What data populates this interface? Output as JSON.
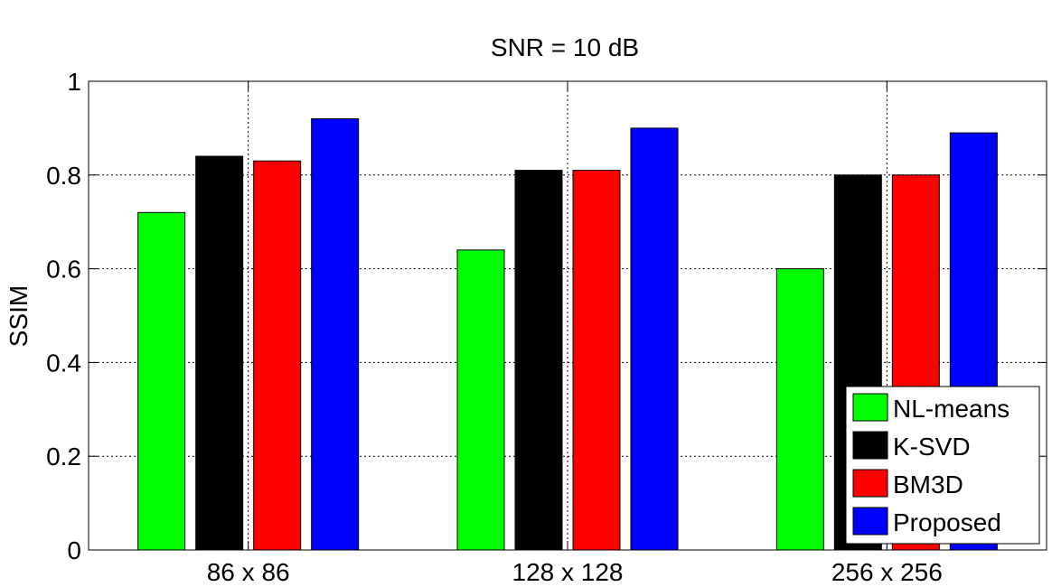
{
  "chart_data": {
    "type": "bar",
    "title": "SNR = 10 dB",
    "xlabel": "",
    "ylabel": "SSIM",
    "categories": [
      "86 x 86",
      "128 x 128",
      "256 x 256"
    ],
    "ylim": [
      0,
      1
    ],
    "yticks": [
      "0",
      "0.2",
      "0.4",
      "0.6",
      "0.8",
      "1"
    ],
    "grid": true,
    "legend_position": "bottom-right",
    "series": [
      {
        "name": "NL-means",
        "color": "#00ff00",
        "values": [
          0.72,
          0.64,
          0.6
        ]
      },
      {
        "name": "K-SVD",
        "color": "#000000",
        "values": [
          0.84,
          0.81,
          0.8
        ]
      },
      {
        "name": "BM3D",
        "color": "#ff0000",
        "values": [
          0.83,
          0.81,
          0.8
        ]
      },
      {
        "name": "Proposed",
        "color": "#0000ff",
        "values": [
          0.92,
          0.9,
          0.89
        ]
      }
    ]
  }
}
